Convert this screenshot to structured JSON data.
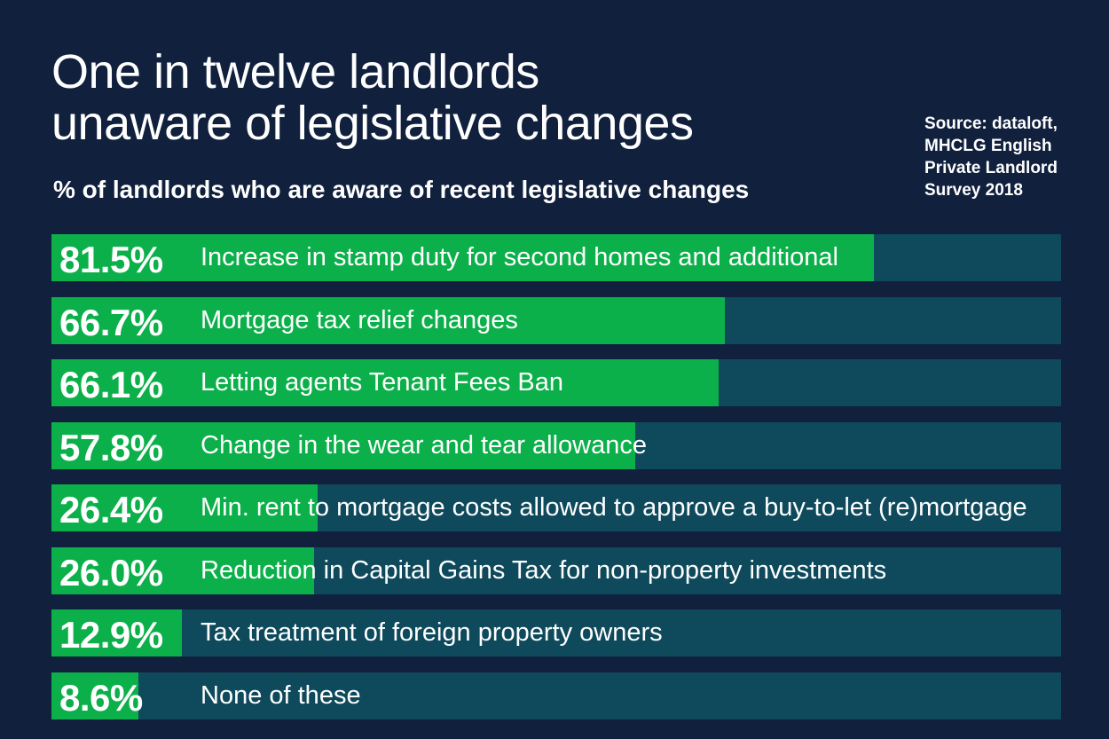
{
  "colors": {
    "background": "#10203d",
    "bar_fill": "#0cb04a",
    "bar_track": "#0e4a5c",
    "text": "#ffffff"
  },
  "header": {
    "title_line1": "One in twelve landlords",
    "title_line2": "unaware of legislative changes",
    "subtitle": "% of landlords who are aware of recent legislative changes",
    "source_line1": "Source: dataloft,",
    "source_line2": "MHCLG English",
    "source_line3": "Private Landlord",
    "source_line4": "Survey 2018"
  },
  "chart_data": {
    "type": "bar",
    "orientation": "horizontal",
    "title": "One in twelve landlords unaware of legislative changes",
    "subtitle": "% of landlords who are aware of recent legislative changes",
    "xlim": [
      0,
      100
    ],
    "grid": false,
    "categories": [
      "Increase in stamp duty for second homes and additional",
      "Mortgage tax relief changes",
      "Letting agents Tenant Fees Ban",
      "Change in the wear and tear allowance",
      "Min. rent to mortgage costs allowed to approve a buy-to-let (re)mortgage",
      "Reduction in Capital Gains Tax for non-property investments",
      "Tax treatment of foreign property owners",
      "None of these"
    ],
    "values": [
      81.5,
      66.7,
      66.1,
      57.8,
      26.4,
      26.0,
      12.9,
      8.6
    ],
    "value_labels": [
      "81.5%",
      "66.7%",
      "66.1%",
      "57.8%",
      "26.4%",
      "26.0%",
      "12.9%",
      "8.6%"
    ]
  }
}
